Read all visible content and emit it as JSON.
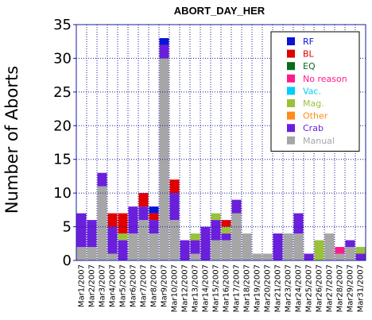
{
  "chart_data": {
    "type": "bar",
    "stacked": true,
    "title": "ABORT_DAY_HER",
    "xlabel": "",
    "ylabel": "Number of Aborts",
    "ylim": [
      0,
      35
    ],
    "yticks": [
      0,
      5,
      10,
      15,
      20,
      25,
      30,
      35
    ],
    "grid": true,
    "legend_position": "top-right",
    "categories": [
      "Mar1/2007",
      "Mar2/2007",
      "Mar3/2007",
      "Mar4/2007",
      "Mar5/2007",
      "Mar6/2007",
      "Mar7/2007",
      "Mar8/2007",
      "Mar9/2007",
      "Mar10/2007",
      "Mar12/2007",
      "Mar13/2007",
      "Mar14/2007",
      "Mar15/2007",
      "Mar16/2007",
      "Mar17/2007",
      "Mar18/2007",
      "Mar19/2007",
      "Mar20/2007",
      "Mar21/2007",
      "Mar23/2007",
      "Mar24/2007",
      "Mar25/2007",
      "Mar26/2007",
      "Mar27/2007",
      "Mar28/2007",
      "Mar29/2007",
      "Mar31/2007"
    ],
    "series": [
      {
        "name": "Manual",
        "color": "#a6a6a6",
        "values": [
          2,
          2,
          11,
          1,
          0,
          4,
          6,
          4,
          30,
          6,
          0,
          1,
          0,
          3,
          3,
          7,
          4,
          1,
          1,
          0,
          4,
          4,
          0,
          0,
          4,
          1,
          2,
          0
        ]
      },
      {
        "name": "Crab",
        "color": "#6a1fdb",
        "values": [
          5,
          4,
          2,
          4,
          3,
          4,
          2,
          2,
          2,
          4,
          3,
          2,
          5,
          3,
          1,
          2,
          0,
          0,
          0,
          4,
          0,
          3,
          1,
          0,
          0,
          0,
          1,
          1
        ]
      },
      {
        "name": "Mag.",
        "color": "#99c23a",
        "values": [
          0,
          0,
          0,
          0,
          1,
          0,
          0,
          0,
          0,
          0,
          0,
          1,
          0,
          1,
          1,
          0,
          0,
          0,
          0,
          0,
          0,
          0,
          0,
          3,
          0,
          0,
          0,
          1
        ]
      },
      {
        "name": "Other",
        "color": "#ff8c1a",
        "values": [
          0,
          0,
          0,
          0,
          0,
          0,
          0,
          0,
          0,
          0,
          0,
          0,
          0,
          0,
          0,
          0,
          0,
          0,
          0,
          0,
          0,
          0,
          0,
          0,
          0,
          0,
          0,
          0
        ]
      },
      {
        "name": "Vac.",
        "color": "#00ccff",
        "values": [
          0,
          0,
          0,
          0,
          0,
          0,
          0,
          0,
          0,
          0,
          0,
          0,
          0,
          0,
          0,
          0,
          0,
          0,
          0,
          0,
          0,
          0,
          0,
          0,
          0,
          0,
          0,
          0
        ]
      },
      {
        "name": "No reason",
        "color": "#ff1a8c",
        "values": [
          0,
          0,
          0,
          0,
          0,
          0,
          0,
          0,
          0,
          0,
          0,
          0,
          0,
          0,
          0,
          0,
          0,
          0,
          0,
          0,
          0,
          0,
          0,
          0,
          0,
          1,
          0,
          0
        ]
      },
      {
        "name": "EQ",
        "color": "#0a6a1f",
        "values": [
          0,
          0,
          0,
          0,
          0,
          0,
          0,
          0,
          0,
          0,
          0,
          0,
          0,
          0,
          0,
          0,
          0,
          0,
          0,
          0,
          0,
          0,
          0,
          0,
          0,
          0,
          0,
          0
        ]
      },
      {
        "name": "BL",
        "color": "#e00000",
        "values": [
          0,
          0,
          0,
          2,
          3,
          0,
          2,
          1,
          0,
          2,
          0,
          0,
          0,
          0,
          1,
          0,
          0,
          0,
          0,
          0,
          0,
          0,
          0,
          0,
          0,
          0,
          0,
          0
        ]
      },
      {
        "name": "RF",
        "color": "#0a14d6",
        "values": [
          0,
          0,
          0,
          0,
          0,
          0,
          0,
          1,
          1,
          0,
          0,
          0,
          0,
          0,
          0,
          0,
          0,
          0,
          0,
          0,
          0,
          0,
          0,
          0,
          0,
          0,
          0,
          0
        ]
      }
    ],
    "legend": [
      {
        "name": "RF",
        "color": "#0a14d6"
      },
      {
        "name": "BL",
        "color": "#e00000"
      },
      {
        "name": "EQ",
        "color": "#0a6a1f"
      },
      {
        "name": "No reason",
        "color": "#ff1a8c"
      },
      {
        "name": "Vac.",
        "color": "#00ccff"
      },
      {
        "name": "Mag.",
        "color": "#99c23a"
      },
      {
        "name": "Other",
        "color": "#ff8c1a"
      },
      {
        "name": "Crab",
        "color": "#6a1fdb"
      },
      {
        "name": "Manual",
        "color": "#a6a6a6"
      }
    ]
  }
}
